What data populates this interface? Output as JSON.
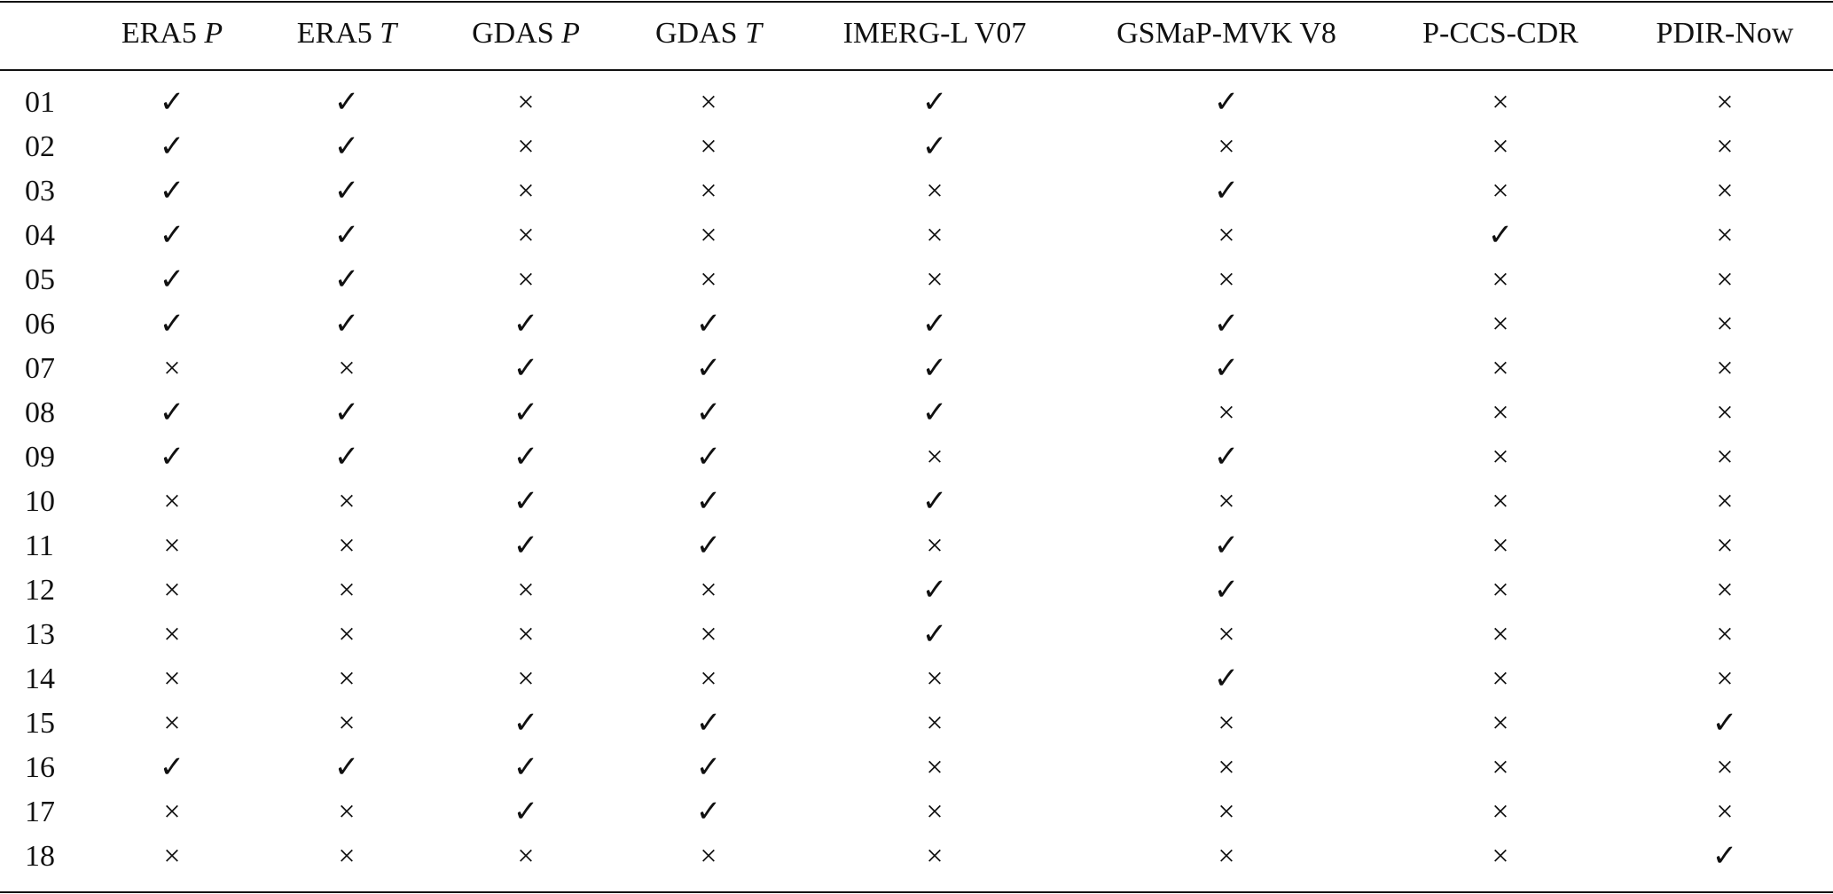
{
  "table": {
    "columns": [
      {
        "text": "ERA5",
        "var": "P"
      },
      {
        "text": "ERA5",
        "var": "T"
      },
      {
        "text": "GDAS",
        "var": "P"
      },
      {
        "text": "GDAS",
        "var": "T"
      },
      {
        "text": "IMERG-L V07"
      },
      {
        "text": "GSMaP-MVK V8"
      },
      {
        "text": "P-CCS-CDR"
      },
      {
        "text": "PDIR-Now"
      }
    ],
    "rows": [
      {
        "id": "01",
        "cells": [
          "✓",
          "✓",
          "×",
          "×",
          "✓",
          "✓",
          "×",
          "×"
        ]
      },
      {
        "id": "02",
        "cells": [
          "✓",
          "✓",
          "×",
          "×",
          "✓",
          "×",
          "×",
          "×"
        ]
      },
      {
        "id": "03",
        "cells": [
          "✓",
          "✓",
          "×",
          "×",
          "×",
          "✓",
          "×",
          "×"
        ]
      },
      {
        "id": "04",
        "cells": [
          "✓",
          "✓",
          "×",
          "×",
          "×",
          "×",
          "✓",
          "×"
        ]
      },
      {
        "id": "05",
        "cells": [
          "✓",
          "✓",
          "×",
          "×",
          "×",
          "×",
          "×",
          "×"
        ]
      },
      {
        "id": "06",
        "cells": [
          "✓",
          "✓",
          "✓",
          "✓",
          "✓",
          "✓",
          "×",
          "×"
        ]
      },
      {
        "id": "07",
        "cells": [
          "×",
          "×",
          "✓",
          "✓",
          "✓",
          "✓",
          "×",
          "×"
        ]
      },
      {
        "id": "08",
        "cells": [
          "✓",
          "✓",
          "✓",
          "✓",
          "✓",
          "×",
          "×",
          "×"
        ]
      },
      {
        "id": "09",
        "cells": [
          "✓",
          "✓",
          "✓",
          "✓",
          "×",
          "✓",
          "×",
          "×"
        ]
      },
      {
        "id": "10",
        "cells": [
          "×",
          "×",
          "✓",
          "✓",
          "✓",
          "×",
          "×",
          "×"
        ]
      },
      {
        "id": "11",
        "cells": [
          "×",
          "×",
          "✓",
          "✓",
          "×",
          "✓",
          "×",
          "×"
        ]
      },
      {
        "id": "12",
        "cells": [
          "×",
          "×",
          "×",
          "×",
          "✓",
          "✓",
          "×",
          "×"
        ]
      },
      {
        "id": "13",
        "cells": [
          "×",
          "×",
          "×",
          "×",
          "✓",
          "×",
          "×",
          "×"
        ]
      },
      {
        "id": "14",
        "cells": [
          "×",
          "×",
          "×",
          "×",
          "×",
          "✓",
          "×",
          "×"
        ]
      },
      {
        "id": "15",
        "cells": [
          "×",
          "×",
          "✓",
          "✓",
          "×",
          "×",
          "×",
          "✓"
        ]
      },
      {
        "id": "16",
        "cells": [
          "✓",
          "✓",
          "✓",
          "✓",
          "×",
          "×",
          "×",
          "×"
        ]
      },
      {
        "id": "17",
        "cells": [
          "×",
          "×",
          "✓",
          "✓",
          "×",
          "×",
          "×",
          "×"
        ]
      },
      {
        "id": "18",
        "cells": [
          "×",
          "×",
          "×",
          "×",
          "×",
          "×",
          "×",
          "✓"
        ]
      }
    ]
  }
}
